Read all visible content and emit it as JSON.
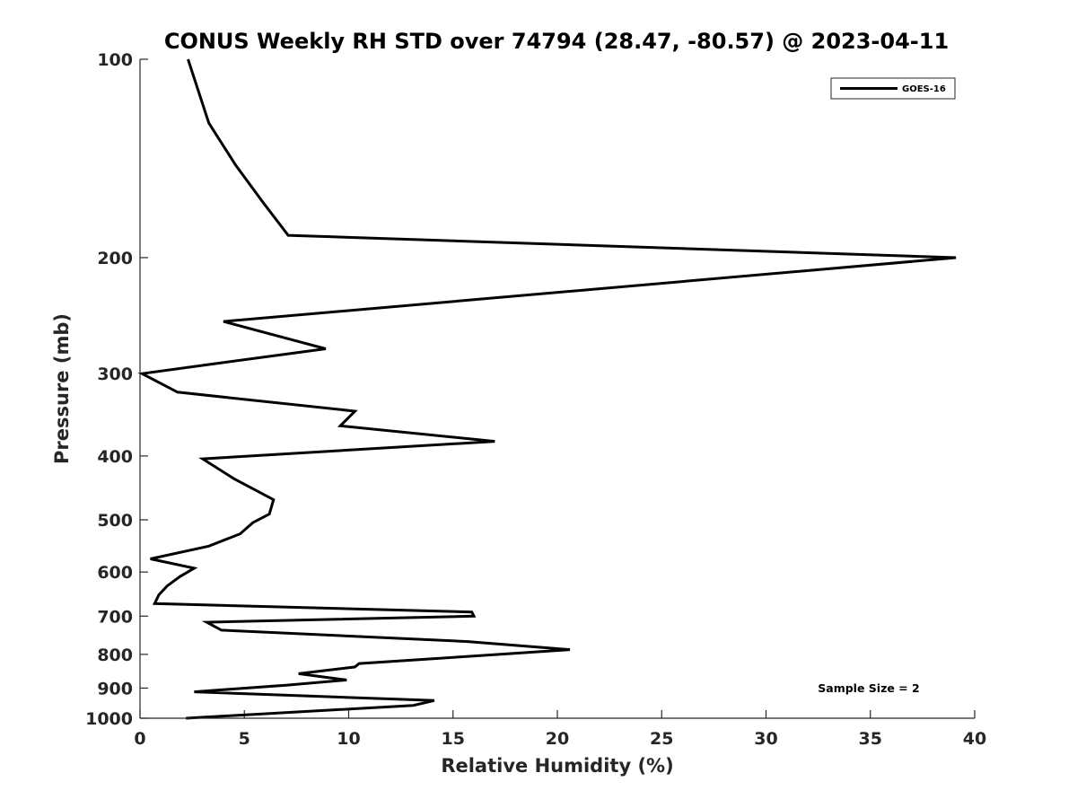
{
  "chart_data": {
    "type": "line",
    "title": "CONUS Weekly RH STD over 74794 (28.47, -80.57) @ 2023-04-11",
    "xlabel": "Relative Humidity (%)",
    "ylabel": "Pressure (mb)",
    "xlim": [
      0,
      40
    ],
    "ylim": [
      100,
      1000
    ],
    "y_scale": "log",
    "y_reversed": true,
    "x_ticks": [
      0,
      5,
      10,
      15,
      20,
      25,
      30,
      35,
      40
    ],
    "x_tick_labels": [
      "0",
      "5",
      "10",
      "15",
      "20",
      "25",
      "30",
      "35",
      "40"
    ],
    "y_ticks": [
      100,
      200,
      300,
      400,
      500,
      600,
      700,
      800,
      900,
      1000
    ],
    "y_tick_labels": [
      "100",
      "200",
      "300",
      "400",
      "500",
      "600",
      "700",
      "800",
      "900",
      "1000"
    ],
    "grid": false,
    "legend_position": "top-right",
    "series": [
      {
        "name": "GOES-16",
        "color": "#000000",
        "x": [
          2.3,
          3.3,
          4.6,
          5.9,
          7.1,
          39.1,
          4.0,
          8.9,
          3.5,
          0.1,
          1.8,
          10.3,
          9.6,
          17.0,
          3.0,
          4.5,
          6.4,
          6.2,
          5.4,
          4.8,
          3.3,
          0.5,
          2.6,
          1.9,
          1.3,
          0.9,
          0.7,
          15.9,
          16.0,
          3.2,
          3.9,
          15.7,
          20.6,
          15.9,
          10.5,
          10.3,
          7.6,
          9.9,
          7.0,
          2.6,
          14.1,
          13.1,
          2.2
        ],
        "y": [
          100,
          125,
          145,
          165,
          185,
          200,
          250,
          275,
          290,
          300,
          320,
          342,
          360,
          380,
          404,
          433,
          466,
          490,
          505,
          525,
          548,
          573,
          592,
          610,
          630,
          650,
          670,
          690,
          700,
          715,
          735,
          765,
          787,
          805,
          826,
          836,
          856,
          875,
          891,
          912,
          940,
          956,
          1000
        ]
      }
    ],
    "annotation": "Sample Size = 2"
  }
}
